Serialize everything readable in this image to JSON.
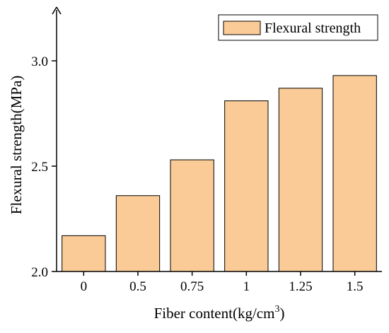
{
  "chart_data": {
    "type": "bar",
    "categories": [
      "0",
      "0.5",
      "0.75",
      "1",
      "1.25",
      "1.5"
    ],
    "series": [
      {
        "name": "Flexural strength",
        "values": [
          2.17,
          2.36,
          2.53,
          2.81,
          2.87,
          2.93
        ]
      }
    ],
    "title": "",
    "xlabel": "Fiber content(kg/cm",
    "xlabel_superscript": "3",
    "xlabel_suffix": ")",
    "ylabel": "Flexural strength(MPa)",
    "ylim": [
      2.0,
      3.3
    ],
    "yticks": [
      "2.0",
      "2.5",
      "3.0"
    ],
    "ytick_values": [
      2.0,
      2.5,
      3.0
    ],
    "grid": false,
    "legend_position": "top-right",
    "colors": {
      "bar_fill": "#FACB96",
      "bar_stroke": "#000000",
      "axis": "#000000"
    }
  }
}
